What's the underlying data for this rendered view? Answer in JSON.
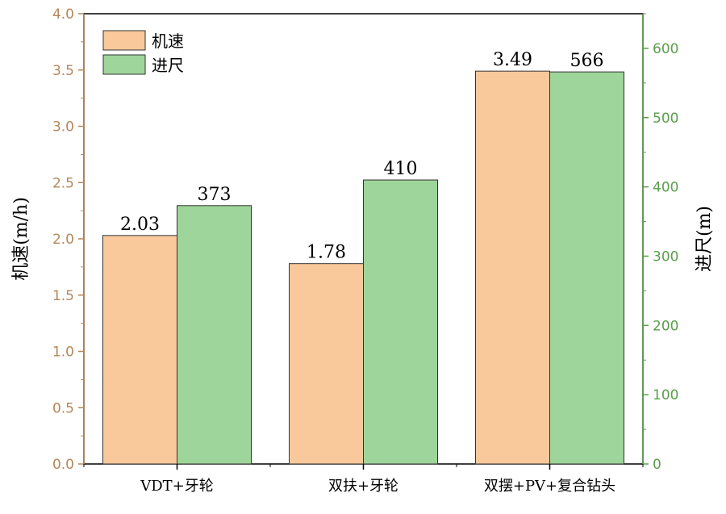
{
  "chart_data": {
    "type": "bar",
    "categories": [
      "VDT+牙轮",
      "双扶+牙轮",
      "双摆+PV+复合钻头"
    ],
    "series": [
      {
        "name": "机速",
        "axis": "left",
        "values": [
          2.03,
          1.78,
          3.49
        ],
        "labels": [
          "2.03",
          "1.78",
          "3.49"
        ],
        "color": "#f9c89b"
      },
      {
        "name": "进尺",
        "axis": "right",
        "values": [
          373,
          410,
          566
        ],
        "labels": [
          "373",
          "410",
          "566"
        ],
        "color": "#9ed59a"
      }
    ],
    "ylabel_left": "机速(m/h)",
    "ylabel_right": "进尺(m)",
    "ylim_left": [
      0,
      4.0
    ],
    "ylim_right": [
      0,
      650
    ],
    "yticks_left": [
      "0.0",
      "0.5",
      "1.0",
      "1.5",
      "2.0",
      "2.5",
      "3.0",
      "3.5",
      "4.0"
    ],
    "yticks_right": [
      "0",
      "100",
      "200",
      "300",
      "400",
      "500",
      "600"
    ],
    "left_axis_color": "#b5875a",
    "right_axis_color": "#5a9e4c",
    "legend_position": "top-left",
    "grid": false
  }
}
